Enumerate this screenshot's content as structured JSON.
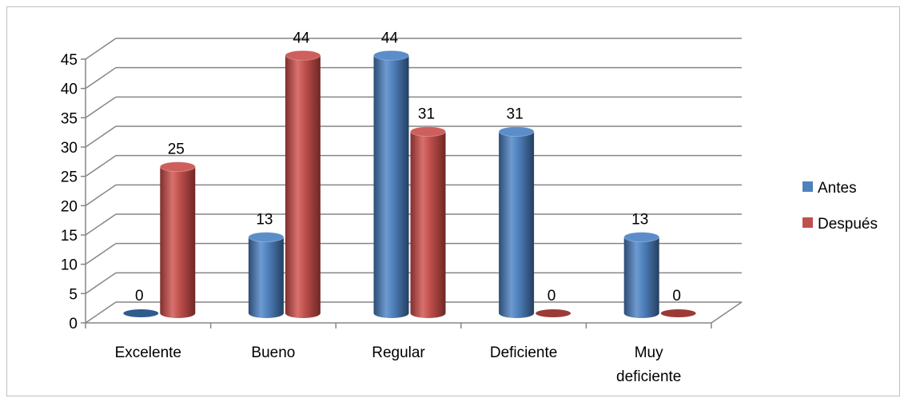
{
  "chart_data": {
    "type": "bar",
    "categories": [
      "Excelente",
      "Bueno",
      "Regular",
      "Deficiente",
      "Muy deficiente"
    ],
    "category_lines": [
      [
        "Excelente"
      ],
      [
        "Bueno"
      ],
      [
        "Regular"
      ],
      [
        "Deficiente"
      ],
      [
        "Muy",
        "deficiente"
      ]
    ],
    "series": [
      {
        "name": "Antes",
        "values": [
          0,
          13,
          44,
          31,
          13
        ],
        "color": "#4f81bd"
      },
      {
        "name": "Después",
        "values": [
          25,
          44,
          31,
          0,
          0
        ],
        "color": "#c0504d"
      }
    ],
    "yticks": [
      "0",
      "5",
      "10",
      "15",
      "20",
      "25",
      "30",
      "35",
      "40",
      "45"
    ],
    "ylim": [
      0,
      45
    ],
    "title": "",
    "xlabel": "",
    "ylabel": "",
    "grid": true,
    "legend_position": "right",
    "style": "3d-cylinder"
  }
}
